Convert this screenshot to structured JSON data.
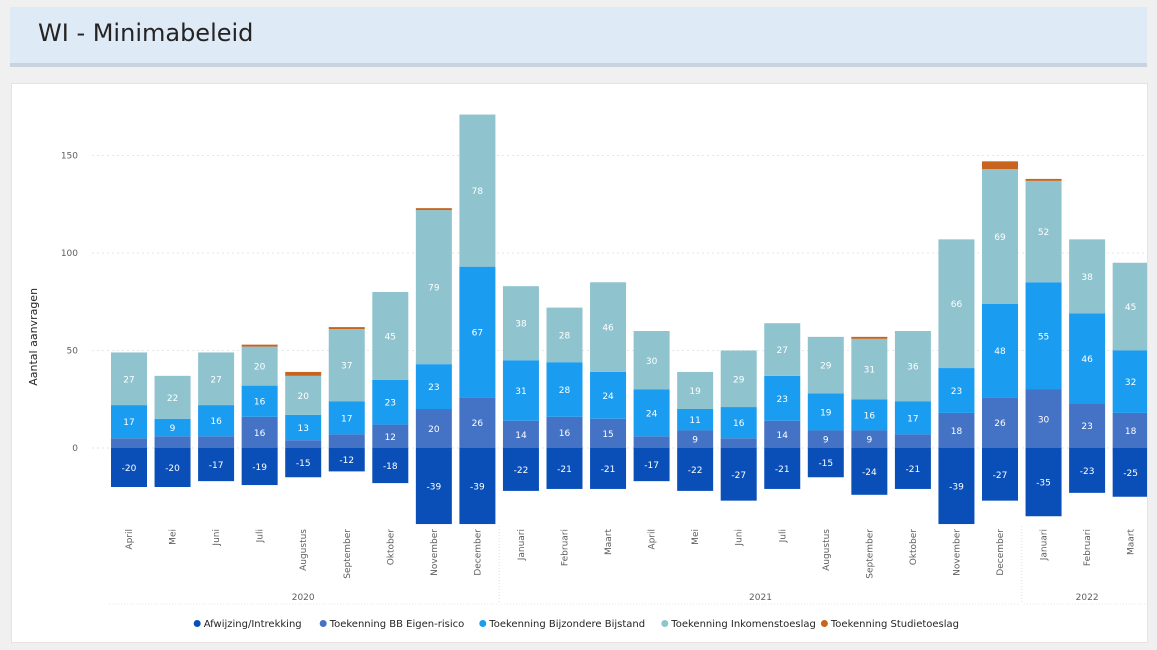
{
  "header": {
    "title": "WI - Minimabeleid"
  },
  "colors": {
    "header_bg": "#deeaf6",
    "afwijzing": "#0a4fb8",
    "eigen_risico": "#4472c4",
    "bijzondere_bijstand": "#1a9cf0",
    "inkomenstoeslag": "#8fc4cf",
    "studietoeslag": "#c8641e"
  },
  "chart_data": {
    "type": "bar",
    "stacked": true,
    "ylabel": "Aantal aanvragen",
    "yticks": [
      0,
      50,
      100,
      150
    ],
    "ylim": [
      -40,
      172
    ],
    "grid": true,
    "legend_position": "bottom-center",
    "categories": [
      "April",
      "Mei",
      "Juni",
      "Juli",
      "Augustus",
      "September",
      "Oktober",
      "November",
      "December",
      "Januari",
      "Februari",
      "Maart",
      "April",
      "Mei",
      "Juni",
      "Juli",
      "Augustus",
      "September",
      "Oktober",
      "November",
      "December",
      "Januari",
      "Februari",
      "Maart"
    ],
    "year_groups": [
      {
        "label": "2020",
        "start": 0,
        "count": 9
      },
      {
        "label": "2021",
        "start": 9,
        "count": 12
      },
      {
        "label": "2022",
        "start": 21,
        "count": 3
      }
    ],
    "series": [
      {
        "name": "Afwijzing/Intrekking",
        "color": "#0a4fb8",
        "values": [
          -20,
          -20,
          -17,
          -19,
          -15,
          -12,
          -18,
          -39,
          -39,
          -22,
          -21,
          -21,
          -17,
          -22,
          -27,
          -21,
          -15,
          -24,
          -21,
          -39,
          -27,
          -35,
          -23,
          -25
        ],
        "labels": [
          "-20",
          "-20",
          "-17",
          "-19",
          "-15",
          "-12",
          "-18",
          "-39",
          "-39",
          "-22",
          "-21",
          "-21",
          "-17",
          "-22",
          "-27",
          "-21",
          "-15",
          "-24",
          "-21",
          "-39",
          "-27",
          "-35",
          "-23",
          "-25"
        ]
      },
      {
        "name": "Toekenning BB Eigen-risico",
        "color": "#4472c4",
        "values": [
          5,
          6,
          6,
          16,
          4,
          7,
          12,
          20,
          26,
          14,
          16,
          15,
          6,
          9,
          5,
          14,
          9,
          9,
          7,
          18,
          26,
          30,
          23,
          18
        ],
        "labels": [
          "",
          "",
          "",
          "16",
          "",
          "",
          "12",
          "20",
          "26",
          "14",
          "16",
          "15",
          "",
          "9",
          "",
          "14",
          "9",
          "9",
          "",
          "18",
          "26",
          "30",
          "23",
          "18"
        ]
      },
      {
        "name": "Toekenning Bijzondere Bijstand",
        "color": "#1a9cf0",
        "values": [
          17,
          9,
          16,
          16,
          13,
          17,
          23,
          23,
          67,
          31,
          28,
          24,
          24,
          11,
          16,
          23,
          19,
          16,
          17,
          23,
          48,
          55,
          46,
          32
        ],
        "labels": [
          "17",
          "9",
          "16",
          "16",
          "13",
          "17",
          "23",
          "23",
          "67",
          "31",
          "28",
          "24",
          "24",
          "11",
          "16",
          "23",
          "19",
          "16",
          "17",
          "23",
          "48",
          "55",
          "46",
          "32"
        ]
      },
      {
        "name": "Toekenning Inkomenstoeslag",
        "color": "#8fc4cf",
        "values": [
          27,
          22,
          27,
          20,
          20,
          37,
          45,
          79,
          78,
          38,
          28,
          46,
          30,
          19,
          29,
          27,
          29,
          31,
          36,
          66,
          69,
          52,
          38,
          45
        ],
        "labels": [
          "27",
          "22",
          "27",
          "20",
          "20",
          "37",
          "45",
          "79",
          "78",
          "38",
          "28",
          "46",
          "30",
          "19",
          "29",
          "27",
          "29",
          "31",
          "36",
          "66",
          "69",
          "52",
          "38",
          "45"
        ]
      },
      {
        "name": "Toekenning Studietoeslag",
        "color": "#c8641e",
        "values": [
          0,
          0,
          0,
          1,
          2,
          1,
          0,
          1,
          0,
          0,
          0,
          0,
          0,
          0,
          0,
          0,
          0,
          1,
          0,
          0,
          4,
          1,
          0,
          0
        ],
        "labels": [
          "",
          "",
          "",
          "",
          "",
          "",
          "",
          "",
          "",
          "",
          "",
          "",
          "",
          "",
          "",
          "",
          "",
          "",
          "",
          "",
          "",
          "",
          "",
          ""
        ]
      }
    ]
  }
}
